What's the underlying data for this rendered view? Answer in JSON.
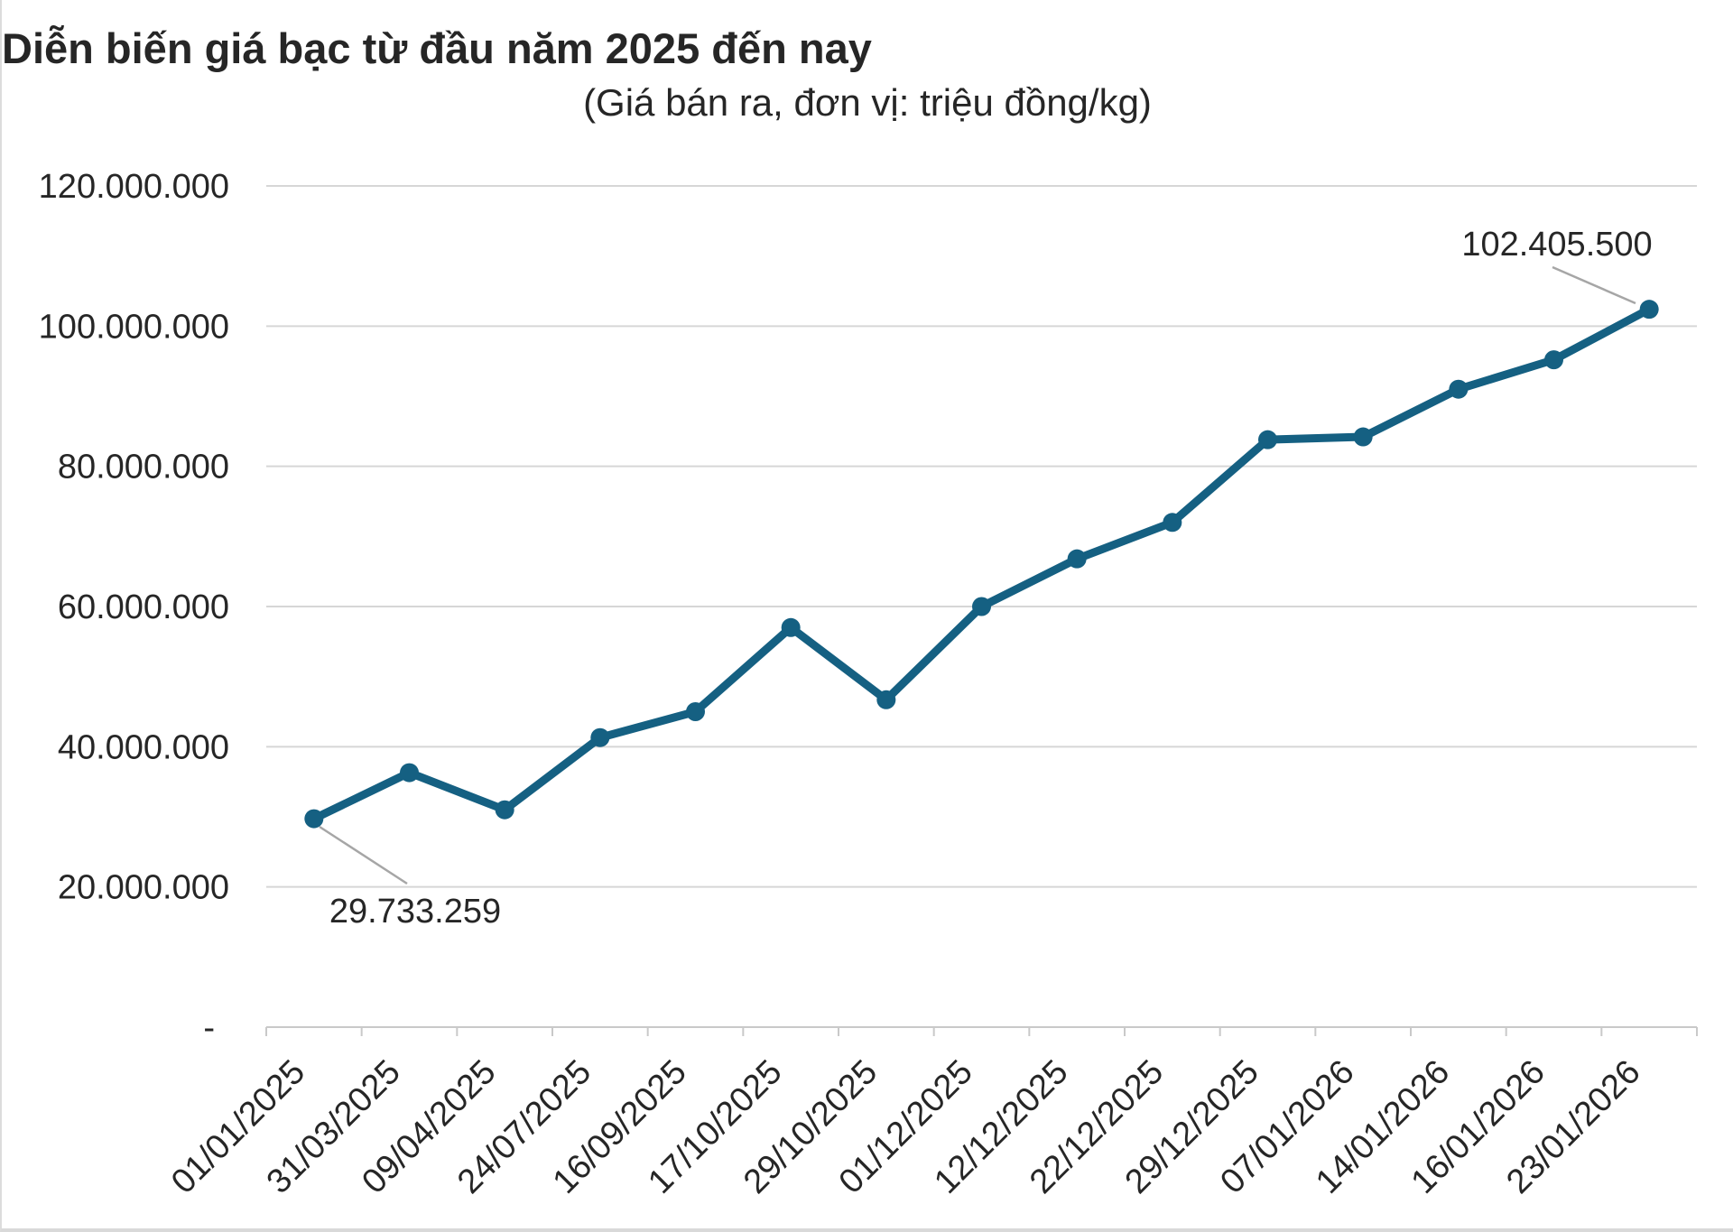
{
  "page": {
    "background": "#ffffff",
    "frame_border_color": "#dcdcdc"
  },
  "chart_data": {
    "type": "line",
    "title": "Diễn biến giá bạc từ đầu năm 2025 đến nay",
    "subtitle": "(Giá bán ra, đơn vị: triệu đồng/kg)",
    "categories": [
      "01/01/2025",
      "31/03/2025",
      "09/04/2025",
      "24/07/2025",
      "16/09/2025",
      "17/10/2025",
      "29/10/2025",
      "01/12/2025",
      "12/12/2025",
      "22/12/2025",
      "29/12/2025",
      "07/01/2026",
      "14/01/2026",
      "16/01/2026",
      "23/01/2026"
    ],
    "values": [
      29733259,
      36300000,
      31000000,
      41300000,
      45000000,
      57000000,
      46700000,
      60000000,
      66800000,
      72000000,
      83800000,
      84200000,
      91000000,
      95200000,
      102405500
    ],
    "ylim": [
      0,
      120000000
    ],
    "ytick_interval": 20000000,
    "ytick_labels_top_to_bottom": [
      "120.000.000",
      "100.000.000",
      "80.000.000",
      "60.000.000",
      "40.000.000",
      "20.000.000",
      "-"
    ],
    "grid": "horizontal-only",
    "legend": "none",
    "marker": "circle",
    "point_labels": [
      {
        "point_index": 0,
        "text": "29.733.259"
      },
      {
        "point_index": 14,
        "text": "102.405.500"
      }
    ],
    "colors": {
      "line": "#156082",
      "grid": "#d6d6d6",
      "axis": "#c9c9c9",
      "text": "#262626",
      "leader": "#a6a6a6",
      "background": "#ffffff"
    }
  }
}
